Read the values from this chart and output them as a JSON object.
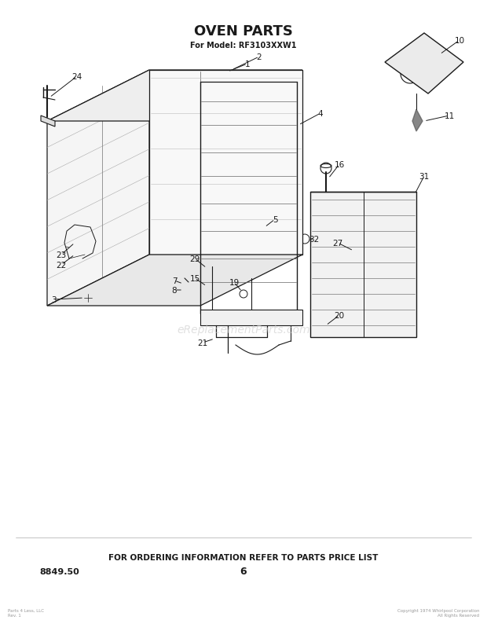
{
  "title": "OVEN PARTS",
  "subtitle": "For Model: RF3103XXW1",
  "footer_text": "FOR ORDERING INFORMATION REFER TO PARTS PRICE LIST",
  "part_number": "8849.50",
  "page_number": "6",
  "bg_color": "#ffffff",
  "fg_color": "#1a1a1a",
  "watermark": "eReplacementParts.com",
  "figsize": [
    6.2,
    8.04
  ],
  "dpi": 100
}
